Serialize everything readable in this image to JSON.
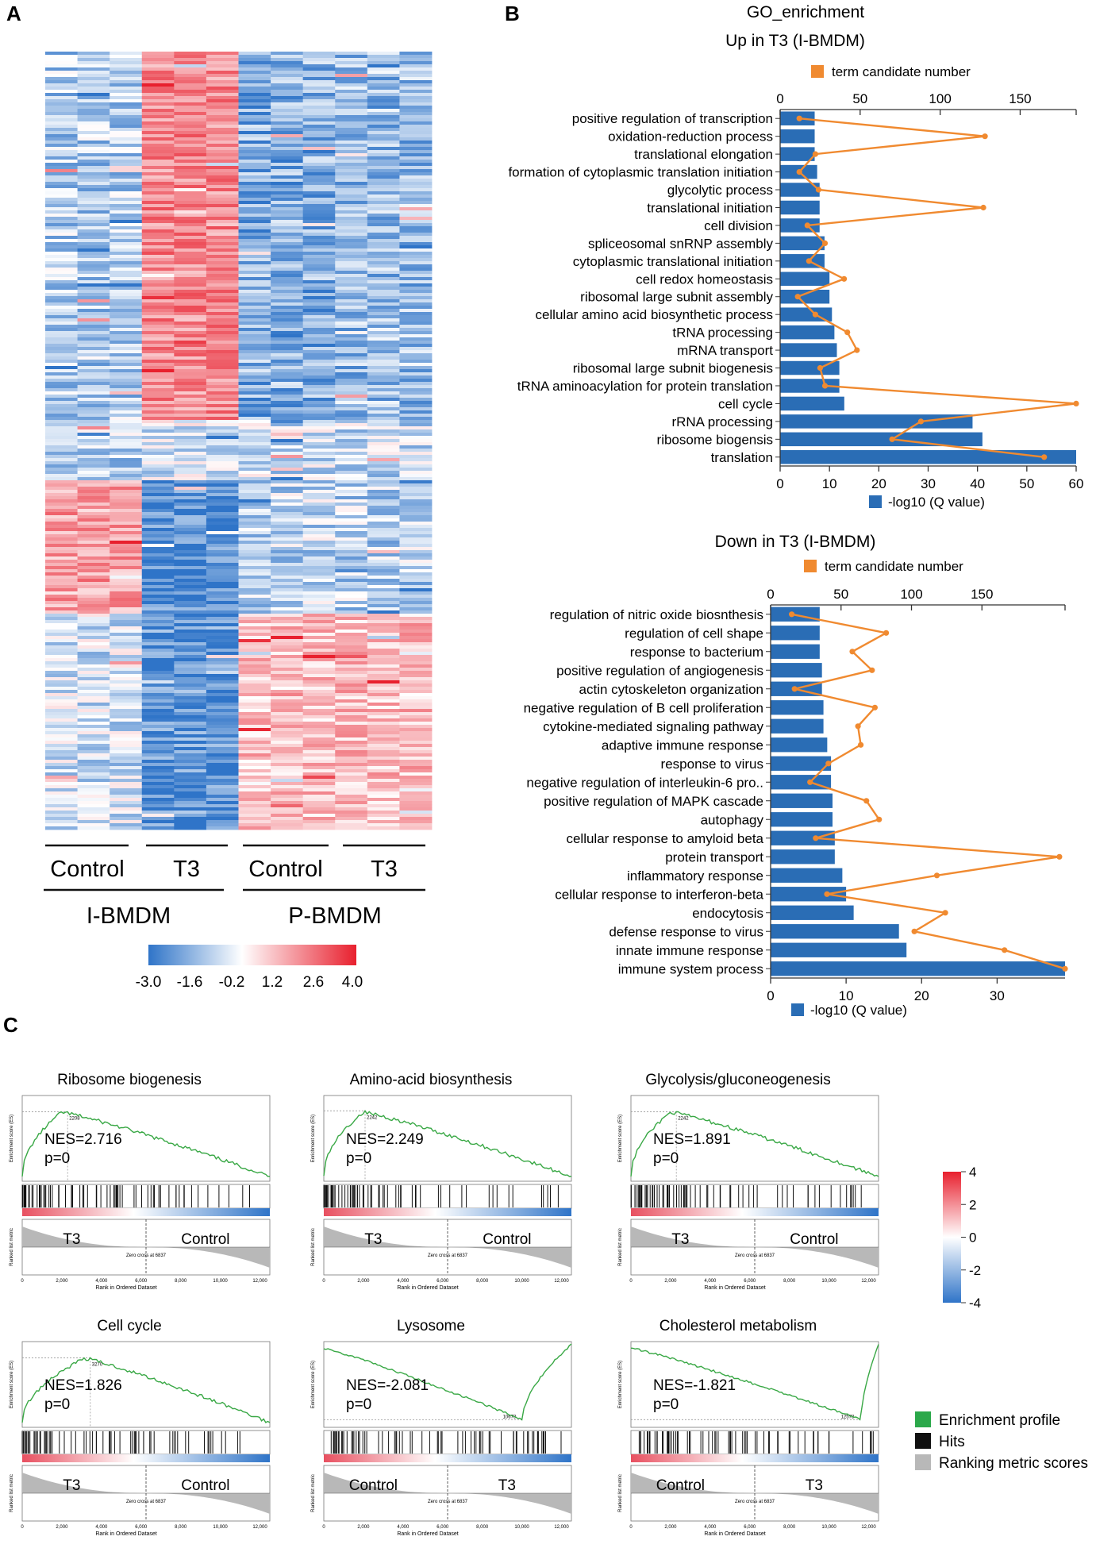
{
  "panels": {
    "a": "A",
    "b": "B",
    "c": "C"
  },
  "heatmap": {
    "groups_top": [
      "Control",
      "T3",
      "Control",
      "T3"
    ],
    "groups_bottom": [
      "I-BMDM",
      "P-BMDM"
    ],
    "scale_ticks": [
      "-3.0",
      "-1.6",
      "-0.2",
      "1.2",
      "2.6",
      "4.0"
    ],
    "colors": {
      "low": "#3a7fcf",
      "mid": "#ffffff",
      "high": "#e8333f"
    }
  },
  "go": {
    "title": "GO_enrichment",
    "legend_line": "term candidate number",
    "legend_bar": "-log10 (Q value)",
    "bar_color": "#2a6db5",
    "line_color": "#f08a30"
  },
  "chart_data": [
    {
      "type": "bar",
      "title": "Up in T3 (I-BMDM)",
      "categories": [
        "positive regulation of transcription",
        "oxidation-reduction process",
        "translational elongation",
        "formation of cytoplasmic translation initiation",
        "glycolytic process",
        "translational initiation",
        "cell division",
        "spliceosomal snRNP assembly",
        "cytoplasmic translational initiation",
        "cell redox homeostasis",
        "ribosomal large subnit assembly",
        "cellular amino acid biosynthetic process",
        "tRNA processing",
        "mRNA transport",
        "ribosomal large subnit biogenesis",
        "tRNA aminoacylation for protein translation",
        "cell cycle",
        "rRNA processing",
        "ribosome biogensis",
        "translation"
      ],
      "series": [
        {
          "name": "-log10 (Q value)",
          "values": [
            7,
            7,
            7,
            7.5,
            8,
            8,
            8,
            9,
            9,
            10,
            10,
            10.5,
            11,
            11.5,
            12,
            12,
            13,
            39,
            41,
            60
          ]
        },
        {
          "name": "term candidate number",
          "values": [
            12,
            128,
            22,
            12,
            24,
            127,
            17,
            28,
            18,
            40,
            11,
            22,
            42,
            48,
            25,
            28,
            185,
            88,
            70,
            165
          ]
        }
      ],
      "x_ticks": [
        "0",
        "10",
        "20",
        "30",
        "40",
        "50",
        "60"
      ],
      "xlim": [
        0,
        60
      ],
      "top_ticks": [
        "0",
        "50",
        "100",
        "150"
      ],
      "top_lim": [
        0,
        185
      ]
    },
    {
      "type": "bar",
      "title": "Down in T3 (I-BMDM)",
      "categories": [
        "regulation of nitric oxide biosnthesis",
        "regulation of cell shape",
        "response to bacterium",
        "positive regulation of angiogenesis",
        "actin cytoskeleton organization",
        "negative regulation of B cell proliferation",
        "cytokine-mediated signaling pathway",
        "adaptive immune response",
        "response to virus",
        "negative regulation of interleukin-6 pro..",
        "positive regulation of MAPK cascade",
        "autophagy",
        "cellular response to amyloid beta",
        "protein transport",
        "inflammatory response",
        "cellular response to interferon-beta",
        "endocytosis",
        "defense response to virus",
        "innate immune response",
        "immune system process"
      ],
      "series": [
        {
          "name": "-log10 (Q value)",
          "values": [
            6.5,
            6.5,
            6.5,
            6.8,
            6.8,
            7,
            7,
            7.5,
            8,
            8,
            8.2,
            8.2,
            8.5,
            8.5,
            9.5,
            10,
            11,
            17,
            18,
            39
          ]
        },
        {
          "name": "term candidate number",
          "values": [
            15,
            82,
            58,
            72,
            17,
            74,
            62,
            64,
            41,
            28,
            68,
            77,
            32,
            205,
            118,
            40,
            124,
            102,
            166,
            209
          ]
        }
      ],
      "x_ticks": [
        "0",
        "10",
        "20",
        "30"
      ],
      "xlim": [
        0,
        39
      ],
      "top_ticks": [
        "0",
        "50",
        "100",
        "150"
      ],
      "top_lim": [
        0,
        209
      ]
    }
  ],
  "gsea": {
    "plots": [
      {
        "title": "Ribosome biogenesis",
        "nes": "NES=2.716",
        "p": "p=0",
        "left": "T3",
        "right": "Control",
        "peak": "2208"
      },
      {
        "title": "Amino-acid biosynthesis",
        "nes": "NES=2.249",
        "p": "p=0",
        "left": "T3",
        "right": "Control",
        "peak": "2242"
      },
      {
        "title": "Glycolysis/gluconeogenesis",
        "nes": "NES=1.891",
        "p": "p=0",
        "left": "T3",
        "right": "Control",
        "peak": "2242"
      },
      {
        "title": "Cell cycle",
        "nes": "NES=1.826",
        "p": "p=0",
        "left": "T3",
        "right": "Control",
        "peak": "3270"
      },
      {
        "title": "Lysosome",
        "nes": "NES=-2.081",
        "p": "p=0",
        "left": "Control",
        "right": "T3",
        "peak": "10673"
      },
      {
        "title": "Cholesterol metabolism",
        "nes": "NES=-1.821",
        "p": "p=0",
        "left": "Control",
        "right": "T3",
        "peak": "12578"
      }
    ],
    "es_label": "Enrichment score (ES)",
    "metric_label": "Ranked list metric",
    "x_label": "Rank in Ordered Dataset",
    "zero_cross": "Zero cross at 6837",
    "x_ticks": [
      "0",
      "2,000",
      "4,000",
      "6,000",
      "8,000",
      "10,000",
      "12,000"
    ],
    "scale_ticks": [
      "4",
      "2",
      "0",
      "-2",
      "-4"
    ],
    "legend": [
      {
        "label": "Enrichment profile",
        "color": "#2ba84a"
      },
      {
        "label": "Hits",
        "color": "#111111"
      },
      {
        "label": "Ranking metric scores",
        "color": "#b8b8b8"
      }
    ]
  }
}
